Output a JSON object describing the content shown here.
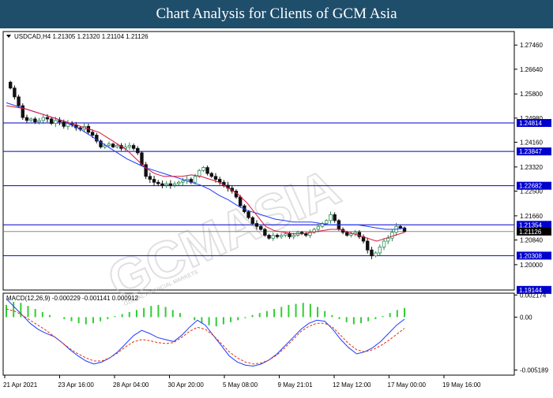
{
  "banner": {
    "title": "Chart Analysis for Clients of GCM Asia"
  },
  "header": {
    "symbol_info": "USDCAD,H4  1.21305 1.21320 1.21104 1.21126",
    "macd_info": "MACD(12,26,9) -0.000229 -0.001141 0.000912"
  },
  "watermark": {
    "brand": "GCMASIA",
    "tagline": "GLOBAL FINANCIAL MARKETS"
  },
  "colors": {
    "support_resistance": "#0000cd",
    "ma_fast": "#dc143c",
    "ma_slow": "#1e3cff",
    "candle_up": "#2e8b57",
    "candle_down": "#111111",
    "macd_hist": "#32cd32",
    "macd_signal": "#e03010",
    "label_bg": "#0000cd",
    "current_label_bg": "#000000"
  },
  "chart_data": [
    {
      "type": "candlestick",
      "symbol": "USDCAD",
      "timeframe": "H4",
      "ohlc_header": {
        "open": 1.21305,
        "high": 1.2132,
        "low": 1.21104,
        "close": 1.21126
      },
      "ylim": [
        1.1914,
        1.2792
      ],
      "y_ticks": [
        "1.27460",
        "1.26640",
        "1.25800",
        "1.24980",
        "1.24160",
        "1.23320",
        "1.22500",
        "1.21660",
        "1.20840",
        "1.20000"
      ],
      "x_ticks": [
        "21 Apr 2021",
        "23 Apr 16:00",
        "28 Apr 04:00",
        "30 Apr 20:00",
        "5 May 08:00",
        "9 May 21:01",
        "12 May 12:00",
        "17 May 00:00",
        "19 May 16:00"
      ],
      "levels": [
        {
          "value": 1.24814,
          "label": "1.24814"
        },
        {
          "value": 1.23847,
          "label": "1.23847"
        },
        {
          "value": 1.22682,
          "label": "1.22682"
        },
        {
          "value": 1.21354,
          "label": "1.21354"
        },
        {
          "value": 1.20308,
          "label": "1.20308"
        },
        {
          "value": 1.19144,
          "label": "1.19144"
        }
      ],
      "current_price": {
        "value": 1.21126,
        "label": "1.21126"
      },
      "close_path": [
        1.262,
        1.26,
        1.257,
        1.254,
        1.25,
        1.249,
        1.2495,
        1.2485,
        1.249,
        1.25,
        1.2495,
        1.248,
        1.249,
        1.2485,
        1.247,
        1.248,
        1.2475,
        1.2465,
        1.246,
        1.247,
        1.245,
        1.244,
        1.242,
        1.24,
        1.2405,
        1.241,
        1.24,
        1.2405,
        1.2395,
        1.24,
        1.2405,
        1.2395,
        1.238,
        1.234,
        1.23,
        1.229,
        1.228,
        1.2275,
        1.227,
        1.2275,
        1.227,
        1.2275,
        1.228,
        1.2285,
        1.229,
        1.228,
        1.23,
        1.232,
        1.233,
        1.231,
        1.23,
        1.229,
        1.228,
        1.227,
        1.226,
        1.225,
        1.223,
        1.22,
        1.218,
        1.216,
        1.214,
        1.213,
        1.212,
        1.21,
        1.209,
        1.21,
        1.2095,
        1.21,
        1.2105,
        1.2095,
        1.21,
        1.211,
        1.2105,
        1.21,
        1.211,
        1.212,
        1.213,
        1.214,
        1.215,
        1.217,
        1.215,
        1.212,
        1.211,
        1.21,
        1.2105,
        1.211,
        1.2095,
        1.208,
        1.205,
        1.203,
        1.204,
        1.206,
        1.208,
        1.209,
        1.211,
        1.213,
        1.2125,
        1.2113
      ],
      "ma_fast": [
        1.254,
        1.2535,
        1.253,
        1.252,
        1.251,
        1.25,
        1.249,
        1.248,
        1.247,
        1.246,
        1.245,
        1.243,
        1.241,
        1.239,
        1.236,
        1.233,
        1.231,
        1.23,
        1.23,
        1.23,
        1.2305,
        1.23,
        1.229,
        1.228,
        1.226,
        1.224,
        1.221,
        1.217,
        1.213,
        1.2115,
        1.211,
        1.2105,
        1.2105,
        1.211,
        1.2115,
        1.212,
        1.212,
        1.211,
        1.21,
        1.209,
        1.208,
        1.209,
        1.21,
        1.211
      ],
      "ma_slow": [
        1.255,
        1.254,
        1.253,
        1.252,
        1.251,
        1.25,
        1.249,
        1.2475,
        1.246,
        1.244,
        1.242,
        1.24,
        1.238,
        1.236,
        1.2345,
        1.233,
        1.232,
        1.231,
        1.23,
        1.229,
        1.228,
        1.227,
        1.2255,
        1.2235,
        1.222,
        1.22,
        1.2185,
        1.2175,
        1.2165,
        1.2155,
        1.215,
        1.2145,
        1.2145,
        1.2145,
        1.214,
        1.2135,
        1.2135,
        1.2135,
        1.2135,
        1.213,
        1.2125,
        1.212,
        1.212,
        1.2125
      ]
    },
    {
      "type": "macd",
      "params": "12,26,9",
      "values": {
        "main": -0.000229,
        "signal": -0.001141,
        "histogram": 0.000912
      },
      "ylim": [
        -0.00569,
        0.00235
      ],
      "y_ticks": [
        "0.002174",
        "0.00",
        "-0.005189"
      ],
      "histogram": [
        0.0012,
        0.0015,
        0.0014,
        0.0011,
        0.0008,
        0.0005,
        0.0002,
        0.0,
        -0.0002,
        -0.0004,
        -0.0006,
        -0.0007,
        -0.0006,
        -0.0004,
        -0.0002,
        0.0001,
        0.0003,
        0.0005,
        0.0007,
        0.0009,
        0.0011,
        0.0012,
        0.001,
        0.0007,
        0.0004,
        0.0,
        -0.0003,
        -0.0006,
        -0.0008,
        -0.0009,
        -0.0007,
        -0.0005,
        -0.0003,
        -0.0001,
        0.0002,
        0.0004,
        0.0006,
        0.0008,
        0.001,
        0.0012,
        0.0013,
        0.0014,
        0.0013,
        0.001,
        0.0006,
        0.0002,
        -0.0002,
        -0.0005,
        -0.0007,
        -0.0006,
        -0.0004,
        -0.0002,
        0.0001,
        0.0004,
        0.0007,
        0.0009
      ],
      "main_line": [
        0.0018,
        0.001,
        0.0002,
        -0.0006,
        -0.0012,
        -0.0016,
        -0.0019,
        -0.0025,
        -0.0032,
        -0.0038,
        -0.0043,
        -0.0046,
        -0.0044,
        -0.004,
        -0.0034,
        -0.0026,
        -0.0018,
        -0.0013,
        -0.0016,
        -0.002,
        -0.0022,
        -0.0024,
        -0.0018,
        -0.001,
        -0.0003,
        -0.0008,
        -0.0018,
        -0.0028,
        -0.0038,
        -0.0044,
        -0.0047,
        -0.0048,
        -0.0046,
        -0.0042,
        -0.0036,
        -0.0028,
        -0.002,
        -0.0012,
        -0.0006,
        -0.0003,
        -0.0004,
        -0.0012,
        -0.0022,
        -0.003,
        -0.0036,
        -0.0034,
        -0.003,
        -0.0024,
        -0.0016,
        -0.0008,
        -0.0002
      ],
      "signal_line": [
        0.0008,
        0.0006,
        0.0002,
        -0.0003,
        -0.0008,
        -0.0013,
        -0.0019,
        -0.0025,
        -0.0031,
        -0.0036,
        -0.004,
        -0.0043,
        -0.0043,
        -0.004,
        -0.0035,
        -0.0029,
        -0.0024,
        -0.0022,
        -0.0023,
        -0.0025,
        -0.0026,
        -0.0025,
        -0.002,
        -0.0014,
        -0.001,
        -0.0012,
        -0.0018,
        -0.0026,
        -0.0034,
        -0.004,
        -0.0044,
        -0.0046,
        -0.0045,
        -0.0042,
        -0.0037,
        -0.003,
        -0.0022,
        -0.0014,
        -0.0009,
        -0.0006,
        -0.0006,
        -0.001,
        -0.0018,
        -0.0026,
        -0.0032,
        -0.0034,
        -0.0032,
        -0.0028,
        -0.0023,
        -0.0017,
        -0.0011
      ]
    }
  ]
}
